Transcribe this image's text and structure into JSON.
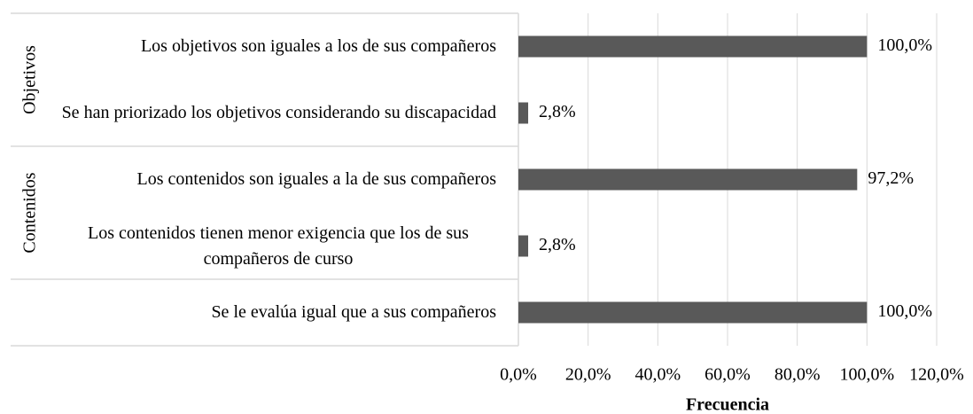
{
  "chart_data": {
    "type": "bar",
    "orientation": "horizontal",
    "categories": [
      "Los objetivos son iguales a los de sus compañeros",
      "Se han priorizado los objetivos considerando su discapacidad",
      "Los contenidos son iguales a la de sus compañeros",
      "Los contenidos tienen menor exigencia que los de sus compañeros de curso",
      "Se le evalúa igual que a sus compañeros"
    ],
    "group_labels": [
      "Objetivos",
      "Objetivos",
      "Contenidos",
      "Contenidos",
      null
    ],
    "values": [
      100,
      2.8,
      97.2,
      2.8,
      100
    ],
    "value_labels": [
      "100,0%",
      "2,8%",
      "97,2%",
      "2,8%",
      "100,0%"
    ],
    "color": "#595959",
    "xlim": [
      0,
      120
    ],
    "xticks": [
      {
        "value": 0,
        "label": "0,0%"
      },
      {
        "value": 20,
        "label": "20,0%"
      },
      {
        "value": 40,
        "label": "40,0%"
      },
      {
        "value": 60,
        "label": "60,0%"
      },
      {
        "value": 80,
        "label": "80,0%"
      },
      {
        "value": 100,
        "label": "100,0%"
      },
      {
        "value": 120,
        "label": "120,0%"
      }
    ],
    "x_label": "Frecuencia",
    "grid": true
  }
}
